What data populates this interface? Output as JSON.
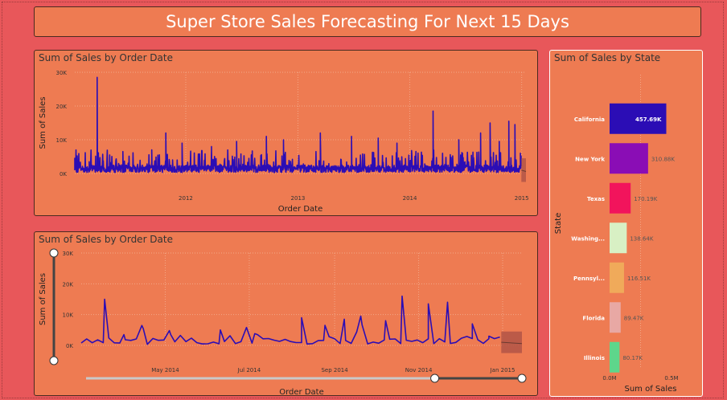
{
  "page_title": "Super Store Sales Forecasting For Next 15 Days",
  "colors": {
    "background": "#E8575A",
    "panel": "#EE7B52",
    "line": "#2B0DB5",
    "forecast_band": "#B25547"
  },
  "chart_data": [
    {
      "type": "line",
      "title": "Sum of Sales by Order Date",
      "xlabel": "Order Date",
      "ylabel": "Sum of Sales",
      "x_ticks": [
        "2012",
        "2013",
        "2014",
        "2015"
      ],
      "y_ticks": [
        "0K",
        "10K",
        "20K",
        "30K"
      ],
      "ylim": [
        0,
        30000
      ],
      "xlim": [
        "2011-01-04",
        "2015-01-15"
      ],
      "grid": true,
      "forecast": {
        "start": "2014-12-31",
        "end": "2015-01-15"
      },
      "series": [
        {
          "values": [
            [
              "2011-01-04",
              4500
            ],
            [
              "2011-02-20",
              3500
            ],
            [
              "2011-03-18",
              28500
            ],
            [
              "2011-06-10",
              6500
            ],
            [
              "2011-09-12",
              7000
            ],
            [
              "2011-10-28",
              12000
            ],
            [
              "2011-12-20",
              9000
            ],
            [
              "2012-03-25",
              8000
            ],
            [
              "2012-06-15",
              9500
            ],
            [
              "2012-09-20",
              11000
            ],
            [
              "2012-11-15",
              10000
            ],
            [
              "2013-03-15",
              12000
            ],
            [
              "2013-06-25",
              11000
            ],
            [
              "2013-09-20",
              10500
            ],
            [
              "2013-11-20",
              9000
            ],
            [
              "2014-03-18",
              18500
            ],
            [
              "2014-06-10",
              10000
            ],
            [
              "2014-08-20",
              12000
            ],
            [
              "2014-09-20",
              15000
            ],
            [
              "2014-10-20",
              9500
            ],
            [
              "2014-11-20",
              15500
            ],
            [
              "2014-12-10",
              14500
            ],
            [
              "2014-12-28",
              6000
            ]
          ]
        }
      ]
    },
    {
      "type": "line",
      "title": "Sum of Sales by Order Date",
      "xlabel": "Order Date",
      "ylabel": "Sum of Sales",
      "x_ticks": [
        "May 2014",
        "Jul 2014",
        "Sep 2014",
        "Nov 2014",
        "Jan 2015"
      ],
      "y_ticks": [
        "0K",
        "10K",
        "20K",
        "30K"
      ],
      "ylim": [
        0,
        30000
      ],
      "xlim": [
        "2014-03-01",
        "2015-01-15"
      ],
      "grid": true,
      "forecast": {
        "start": "2014-12-31",
        "end": "2015-01-15"
      },
      "series": [
        {
          "values": [
            [
              "2014-03-18",
              15000
            ],
            [
              "2014-04-01",
              3500
            ],
            [
              "2014-04-15",
              5500
            ],
            [
              "2014-05-05",
              3500
            ],
            [
              "2014-06-10",
              5000
            ],
            [
              "2014-07-05",
              3800
            ],
            [
              "2014-08-08",
              9000
            ],
            [
              "2014-08-25",
              6500
            ],
            [
              "2014-09-08",
              8500
            ],
            [
              "2014-09-20",
              9500
            ],
            [
              "2014-10-08",
              8000
            ],
            [
              "2014-10-20",
              16000
            ],
            [
              "2014-11-08",
              13500
            ],
            [
              "2014-11-22",
              14000
            ],
            [
              "2014-12-10",
              7000
            ],
            [
              "2014-12-22",
              3000
            ]
          ]
        }
      ],
      "range_slider": {
        "start_fraction": 0.8,
        "end_fraction": 1.0
      }
    },
    {
      "type": "bar",
      "orientation": "horizontal",
      "title": "Sum of Sales by State",
      "xlabel": "Sum of Sales",
      "ylabel": "State",
      "categories": [
        "California",
        "New York",
        "Texas",
        "Washing...",
        "Pennsyl...",
        "Florida",
        "Illinois"
      ],
      "values": [
        457.69,
        310.88,
        170.19,
        138.64,
        116.51,
        89.47,
        80.17
      ],
      "data_labels": [
        "457.69K",
        "310.88K",
        "170.19K",
        "138.64K",
        "116.51K",
        "89.47K",
        "80.17K"
      ],
      "colors": [
        "#2B0DB5",
        "#8A0DB5",
        "#F2145C",
        "#D8F0C4",
        "#F0AA5A",
        "#E8A8A4",
        "#5ED68B"
      ],
      "x_ticks": [
        "0.0M",
        "0.5M"
      ],
      "xlim": [
        0,
        500
      ]
    }
  ]
}
